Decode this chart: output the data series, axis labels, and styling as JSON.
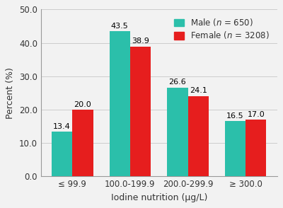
{
  "categories": [
    "≤ 99.9",
    "100.0-199.9",
    "200.0-299.9",
    "≥ 300.0"
  ],
  "male_values": [
    13.4,
    43.5,
    26.6,
    16.5
  ],
  "female_values": [
    20.0,
    38.9,
    24.1,
    17.0
  ],
  "male_color": "#2bbfaa",
  "female_color": "#e61e1e",
  "male_label": "Male ($n$ = 650)",
  "female_label": "Female ($n$ = 3208)",
  "xlabel": "Iodine nutrition (μg/L)",
  "ylabel": "Percent (%)",
  "ylim": [
    0,
    50
  ],
  "yticks": [
    0.0,
    10.0,
    20.0,
    30.0,
    40.0,
    50.0
  ],
  "bar_width": 0.36,
  "label_fontsize": 9,
  "tick_fontsize": 8.5,
  "value_fontsize": 8.0,
  "legend_fontsize": 8.5,
  "background_color": "#f2f2f2"
}
